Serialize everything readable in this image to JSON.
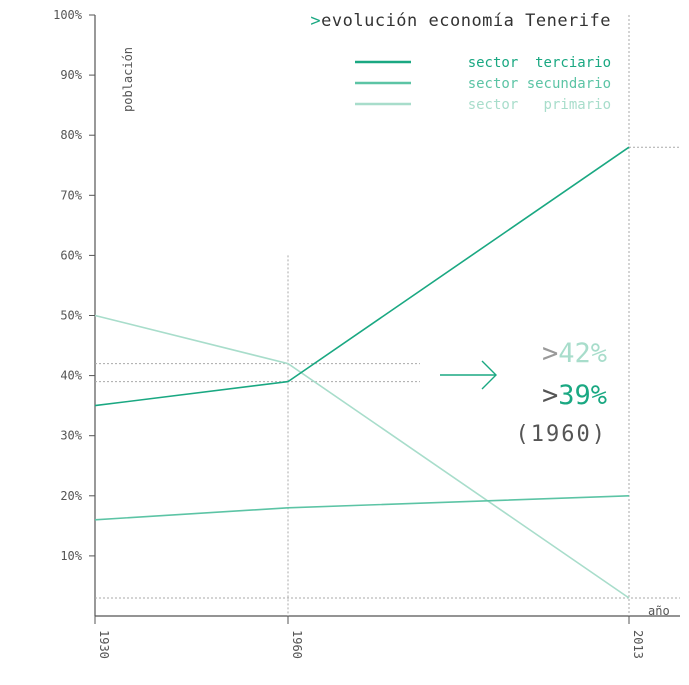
{
  "chart_data": {
    "type": "line",
    "title_prefix": ">",
    "title": "evolución economía Tenerife",
    "ylabel": "población",
    "xlabel": "año",
    "x": [
      "1930",
      "1960",
      "2013"
    ],
    "x_values": [
      1930,
      1960,
      2013
    ],
    "ylim": [
      0,
      100
    ],
    "yticks": [
      "10%",
      "20%",
      "30%",
      "40%",
      "50%",
      "60%",
      "70%",
      "80%",
      "90%",
      "100%"
    ],
    "ytick_values": [
      10,
      20,
      30,
      40,
      50,
      60,
      70,
      80,
      90,
      100
    ],
    "series": [
      {
        "name": "sector  terciario",
        "values": [
          35,
          39,
          78
        ],
        "color": "#1aa882"
      },
      {
        "name": "sector secundario",
        "values": [
          16,
          18,
          20
        ],
        "color": "#5cc4a5"
      },
      {
        "name": "sector   primario",
        "values": [
          50,
          42,
          3
        ],
        "color": "#a8ddcb"
      }
    ],
    "annotation": {
      "prefix": ">",
      "primary_value": "42%",
      "terciary_value": "39%",
      "year": "(1960)",
      "arrow_icon": "arrow-right-icon"
    },
    "grid": false,
    "legend_position": "top-right"
  }
}
